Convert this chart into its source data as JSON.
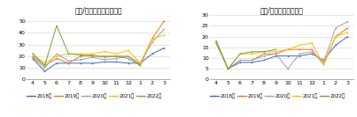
{
  "title_left": "売却/価格（不適合件数）",
  "title_right": "売却/価格（全件件数）",
  "x_labels": [
    "4",
    "5",
    "6",
    "7",
    "8",
    "9",
    "10",
    "11",
    "12",
    "1",
    "2",
    "3"
  ],
  "left": {
    "series": [
      {
        "label": "2018年",
        "color": "#4472c4",
        "values": [
          18,
          7,
          14,
          14,
          14,
          14,
          15,
          15,
          14,
          14,
          22,
          27
        ]
      },
      {
        "label": "2019年",
        "color": "#ed7d31",
        "values": [
          20,
          12,
          18,
          14,
          20,
          21,
          19,
          20,
          20,
          12,
          35,
          50
        ]
      },
      {
        "label": "2020年",
        "color": "#a5a5a5",
        "values": [
          19,
          10,
          22,
          16,
          17,
          19,
          17,
          18,
          20,
          14,
          32,
          43
        ]
      },
      {
        "label": "2021年",
        "color": "#ffc000",
        "values": [
          22,
          14,
          20,
          22,
          22,
          22,
          24,
          22,
          25,
          14,
          35,
          38
        ]
      },
      {
        "label": "2022年",
        "color": "#70ad47",
        "values": [
          22,
          12,
          46,
          22,
          21,
          20,
          20,
          20,
          18,
          12,
          null,
          null
        ]
      }
    ],
    "ylim": [
      0,
      55
    ],
    "yticks": [
      0,
      10,
      20,
      30,
      40,
      50
    ]
  },
  "right": {
    "series": [
      {
        "label": "2018年",
        "color": "#4472c4",
        "values": [
          17,
          5,
          8,
          8,
          9,
          11,
          11,
          11,
          12,
          9,
          16,
          20
        ]
      },
      {
        "label": "2019年",
        "color": "#ed7d31",
        "values": [
          18,
          5,
          9,
          9,
          12,
          12,
          14,
          14,
          14,
          7,
          20,
          24
        ]
      },
      {
        "label": "2020年",
        "color": "#a5a5a5",
        "values": [
          17,
          5,
          9,
          9,
          11,
          12,
          5,
          12,
          13,
          8,
          24,
          27
        ]
      },
      {
        "label": "2021年",
        "color": "#ffc000",
        "values": [
          18,
          5,
          12,
          12,
          13,
          13,
          14,
          16,
          17,
          7,
          20,
          22
        ]
      },
      {
        "label": "2022年",
        "color": "#70ad47",
        "values": [
          18,
          5,
          12,
          13,
          13,
          14,
          null,
          null,
          null,
          null,
          null,
          null
        ]
      }
    ],
    "ylim": [
      0,
      30
    ],
    "yticks": [
      0,
      5,
      10,
      15,
      20,
      25,
      30
    ]
  },
  "legend_labels": [
    "2018年",
    "2019年",
    "2020年",
    "2021年",
    "2022年"
  ],
  "legend_colors": [
    "#4472c4",
    "#ed7d31",
    "#a5a5a5",
    "#ffc000",
    "#70ad47"
  ],
  "bg_color": "#ffffff",
  "font_size": 4.5,
  "title_font_size": 5.5,
  "line_width": 0.75,
  "marker_size": 1.2
}
